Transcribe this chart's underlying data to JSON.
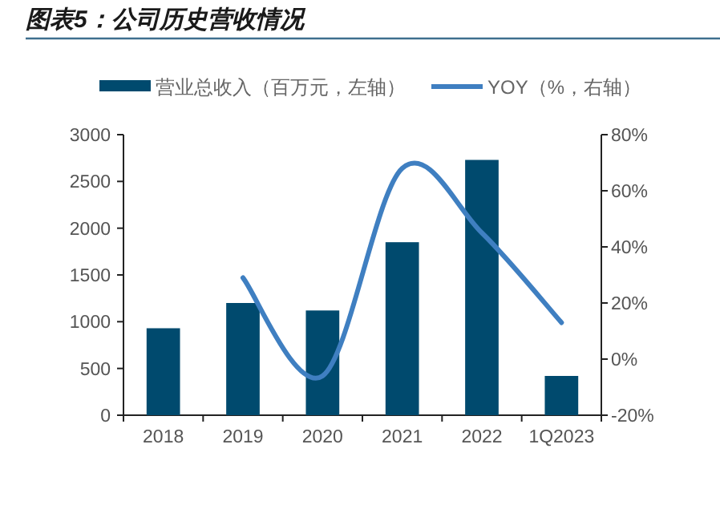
{
  "chart_data": {
    "type": "bar",
    "title": "图表5：公司历史营收情况",
    "categories": [
      "2018",
      "2019",
      "2020",
      "2021",
      "2022",
      "1Q2023"
    ],
    "series": [
      {
        "name": "营业总收入（百万元，左轴）",
        "color": "#004a6e",
        "values": [
          930,
          1200,
          1120,
          1850,
          2730,
          420
        ]
      },
      {
        "name": "YOY（%，右轴）",
        "type": "line",
        "axis": "y2",
        "color": "#3f7fc1",
        "values": [
          null,
          29,
          -6,
          68,
          45,
          13
        ]
      }
    ],
    "ylim": [
      0,
      3000
    ],
    "yticks": [
      0,
      500,
      1000,
      1500,
      2000,
      2500,
      3000
    ],
    "y2lim": [
      -20,
      80
    ],
    "y2ticks": [
      {
        "value": -20,
        "label": "-20%"
      },
      {
        "value": 0,
        "label": "0%"
      },
      {
        "value": 20,
        "label": "20%"
      },
      {
        "value": 40,
        "label": "40%"
      },
      {
        "value": 60,
        "label": "60%"
      },
      {
        "value": 80,
        "label": "80%"
      }
    ],
    "legend": "top",
    "grid": false
  }
}
